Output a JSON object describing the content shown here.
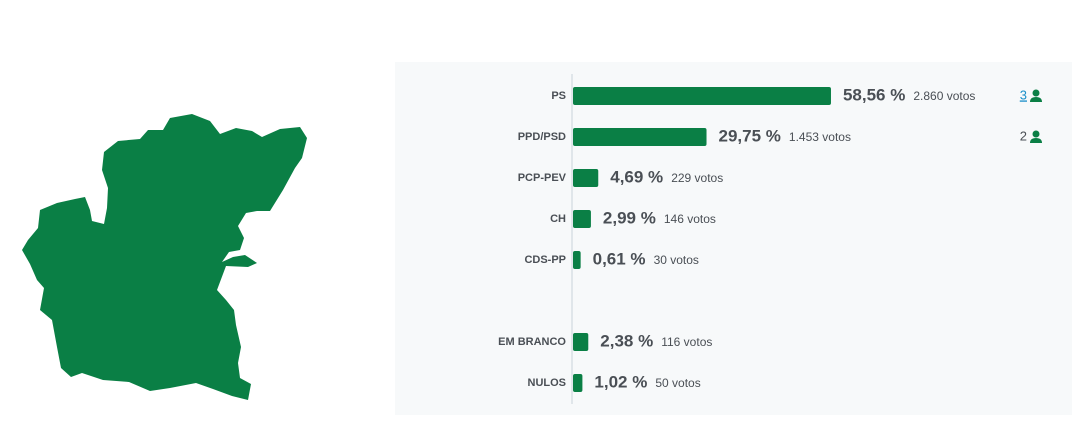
{
  "chart_data": {
    "type": "bar",
    "orientation": "horizontal",
    "color": "#0a7f45",
    "categories": [
      "PS",
      "PPD/PSD",
      "PCP-PEV",
      "CH",
      "CDS-PP",
      "EM BRANCO",
      "NULOS"
    ],
    "values": [
      58.56,
      29.75,
      4.69,
      2.99,
      0.61,
      2.38,
      1.02
    ],
    "value_labels": [
      "58,56 %",
      "29,75 %",
      "4,69 %",
      "2,99 %",
      "0,61 %",
      "2,38 %",
      "1,02 %"
    ],
    "votes": [
      "2.860 votos",
      "1.453 votos",
      "229 votos",
      "146 votos",
      "30 votos",
      "116 votos",
      "50 votos"
    ],
    "seats": [
      3,
      2,
      null,
      null,
      null,
      null,
      null
    ]
  }
}
